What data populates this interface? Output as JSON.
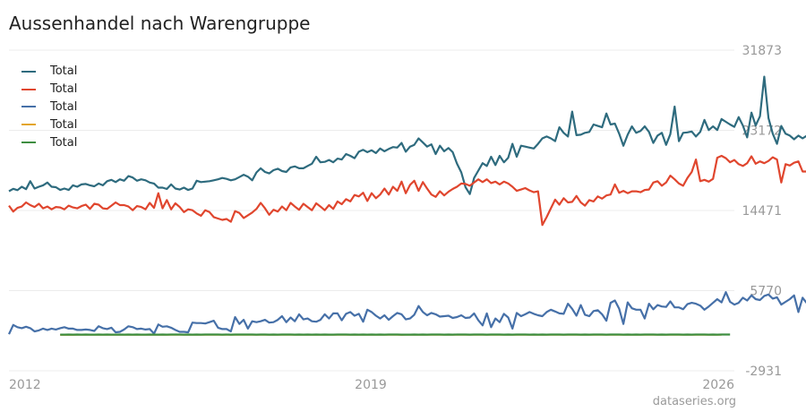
{
  "title": "Aussenhandel nach Warengruppe",
  "credit": "dataseries.org",
  "chart_data": {
    "type": "line",
    "title": "Aussenhandel nach Warengruppe",
    "x_ticks": [
      "2012",
      "2019",
      "2026"
    ],
    "x_range": [
      "2012-01",
      "2026-03"
    ],
    "y_ticks": [
      31873,
      23172,
      14471,
      5770,
      -2931
    ],
    "ylim": [
      -2931,
      31873
    ],
    "y_axis_side": "right",
    "grid": true,
    "legend_position": "top-left",
    "series": [
      {
        "name": "Total",
        "color": "#2e6b7e",
        "start": "2012-01",
        "frequency": "monthly",
        "values": [
          16560,
          16820,
          16680,
          17050,
          16780,
          17650,
          16850,
          17050,
          17200,
          17500,
          17050,
          17000,
          16700,
          16850,
          16700,
          17200,
          17050,
          17300,
          17350,
          17200,
          17100,
          17400,
          17200,
          17650,
          17800,
          17550,
          17850,
          17700,
          18200,
          18050,
          17700,
          17850,
          17750,
          17500,
          17400,
          16950,
          16950,
          16800,
          17300,
          16850,
          16750,
          16950,
          16700,
          16850,
          17700,
          17550,
          17600,
          17650,
          17750,
          17850,
          18000,
          17900,
          17750,
          17850,
          18100,
          18350,
          18150,
          17750,
          18600,
          19050,
          18650,
          18500,
          18850,
          19000,
          18750,
          18650,
          19150,
          19250,
          19050,
          19050,
          19300,
          19550,
          20300,
          19700,
          19750,
          19950,
          19700,
          20100,
          20000,
          20600,
          20400,
          20150,
          20850,
          21050,
          20800,
          21000,
          20700,
          21200,
          20900,
          21150,
          21350,
          21300,
          21800,
          20850,
          21400,
          21600,
          22300,
          21850,
          21400,
          21650,
          20600,
          21500,
          20900,
          21250,
          20800,
          19550,
          18600,
          17000,
          16250,
          18000,
          18800,
          19600,
          19300,
          20300,
          19400,
          20400,
          19700,
          20200,
          21700,
          20300,
          21500,
          21400,
          21300,
          21200,
          21700,
          22300,
          22500,
          22300,
          22000,
          23500,
          22900,
          22500,
          25200,
          22650,
          22700,
          22900,
          23000,
          23800,
          23650,
          23500,
          25000,
          23800,
          23900,
          22800,
          21500,
          22700,
          23600,
          22900,
          23100,
          23600,
          23000,
          21800,
          22600,
          22900,
          21600,
          22750,
          25750,
          22000,
          22900,
          22950,
          23050,
          22500,
          23000,
          24300,
          23200,
          23600,
          23200,
          24400,
          24100,
          23800,
          23550,
          24600,
          23700,
          22400,
          25100,
          23700,
          24700,
          29000,
          24500,
          22800,
          21700,
          23650,
          22800,
          22600,
          22200,
          22600,
          22300,
          22600,
          22700,
          22900,
          22200,
          22800,
          22700,
          22800,
          25300,
          24400
        ]
      },
      {
        "name": "Total",
        "color": "#e0462e",
        "start": "2012-01",
        "frequency": "monthly",
        "values": [
          15000,
          14350,
          14750,
          14900,
          15350,
          15050,
          14850,
          15200,
          14700,
          14900,
          14600,
          14850,
          14800,
          14600,
          15000,
          14800,
          14700,
          14950,
          15100,
          14650,
          15200,
          15100,
          14700,
          14650,
          15000,
          15350,
          15050,
          15050,
          14900,
          14500,
          14950,
          14850,
          14600,
          15300,
          14750,
          16350,
          14700,
          15600,
          14600,
          15250,
          14850,
          14300,
          14600,
          14500,
          14150,
          13900,
          14500,
          14300,
          13750,
          13600,
          13450,
          13550,
          13250,
          14400,
          14200,
          13650,
          13950,
          14250,
          14650,
          15300,
          14700,
          14000,
          14550,
          14350,
          14900,
          14500,
          15300,
          14900,
          14550,
          15200,
          14850,
          14500,
          15250,
          14900,
          14500,
          15050,
          14650,
          15450,
          15150,
          15700,
          15450,
          16150,
          16000,
          16400,
          15500,
          16350,
          15800,
          16200,
          16850,
          16200,
          17050,
          16600,
          17600,
          16350,
          17250,
          17700,
          16600,
          17550,
          16850,
          16200,
          15950,
          16550,
          16100,
          16500,
          16800,
          17050,
          17400,
          17350,
          17150,
          17500,
          17850,
          17550,
          17850,
          17450,
          17600,
          17300,
          17600,
          17400,
          17050,
          16600,
          16750,
          16900,
          16650,
          16450,
          16550,
          12900,
          13750,
          14700,
          15650,
          15100,
          15800,
          15350,
          15400,
          16050,
          15350,
          15000,
          15600,
          15450,
          16000,
          15750,
          16100,
          16200,
          17300,
          16400,
          16600,
          16350,
          16550,
          16550,
          16450,
          16700,
          16750,
          17500,
          17650,
          17150,
          17500,
          18250,
          17850,
          17400,
          17150,
          18000,
          18650,
          20000,
          17650,
          17800,
          17600,
          17900,
          20200,
          20400,
          20150,
          19700,
          19950,
          19500,
          19300,
          19600,
          20350,
          19550,
          19800,
          19600,
          19850,
          20250,
          20000,
          17500,
          19500,
          19350,
          19650,
          19800,
          18700,
          18700,
          19100,
          18750,
          18800,
          18350,
          19000,
          18300,
          18300,
          19650,
          19150,
          19700,
          19250,
          18750,
          19300,
          18600,
          19150,
          18700,
          18650,
          17950,
          18900,
          18850,
          18950,
          18250,
          18800,
          19550,
          18850,
          18650,
          18450,
          19100,
          18850,
          18350,
          19700,
          22400,
          18300,
          17350,
          19650,
          20050,
          19900,
          19650,
          19500,
          19600,
          17650,
          19650,
          19150,
          19450,
          19950,
          20450
        ]
      },
      {
        "name": "Total",
        "color": "#4670a8",
        "start": "2012-01",
        "frequency": "monthly",
        "values": [
          1050,
          2050,
          1800,
          1700,
          1850,
          1700,
          1350,
          1450,
          1650,
          1500,
          1650,
          1550,
          1700,
          1800,
          1650,
          1650,
          1500,
          1500,
          1550,
          1500,
          1400,
          1900,
          1700,
          1600,
          1750,
          1250,
          1300,
          1550,
          1900,
          1800,
          1600,
          1650,
          1550,
          1600,
          1100,
          2100,
          1850,
          1900,
          1750,
          1500,
          1300,
          1300,
          1250,
          2300,
          2250,
          2250,
          2200,
          2350,
          2500,
          1750,
          1600,
          1600,
          1350,
          2900,
          2150,
          2600,
          1650,
          2450,
          2350,
          2450,
          2600,
          2300,
          2350,
          2600,
          3000,
          2350,
          2850,
          2450,
          3200,
          2650,
          2750,
          2450,
          2400,
          2600,
          3200,
          2750,
          3300,
          3300,
          2550,
          3250,
          3450,
          3050,
          3250,
          2400,
          3700,
          3450,
          3050,
          2750,
          3100,
          2600,
          3000,
          3350,
          3200,
          2650,
          2750,
          3150,
          4100,
          3450,
          3100,
          3350,
          3200,
          2950,
          3000,
          3050,
          2800,
          2900,
          3100,
          2800,
          2850,
          3300,
          2550,
          2000,
          3300,
          1800,
          2750,
          2350,
          3250,
          2850,
          1650,
          3350,
          3000,
          3200,
          3450,
          3250,
          3100,
          3000,
          3450,
          3700,
          3500,
          3300,
          3250,
          4350,
          3800,
          3050,
          4200,
          3150,
          3000,
          3550,
          3650,
          3200,
          2500,
          4450,
          4700,
          3800,
          2150,
          4500,
          3850,
          3700,
          3700,
          2750,
          4350,
          3750,
          4200,
          4050,
          4000,
          4600,
          3950,
          3950,
          3750,
          4300,
          4450,
          4350,
          4150,
          3700,
          4050,
          4450,
          4850,
          4500,
          5600,
          4550,
          4250,
          4450,
          5000,
          4700,
          5250,
          4850,
          4750,
          5200,
          5350,
          4900,
          5050,
          4250,
          4550,
          4850,
          5250,
          3450,
          5000,
          4400,
          4350,
          3850,
          3950,
          4750,
          4300,
          4900,
          4000,
          3150,
          3900,
          5900,
          3300,
          4200,
          3700,
          2500,
          4200,
          5600,
          4950,
          4650,
          4550,
          3450,
          3800,
          3800,
          4000,
          4100,
          3750,
          3950,
          4000,
          3650,
          4000,
          4200,
          4950,
          4000,
          4500,
          3650,
          3400,
          4050,
          4150,
          3750,
          4350,
          4800,
          4050,
          4300,
          4450,
          4500,
          4600,
          4100,
          4650,
          4300,
          4550,
          4900,
          4650,
          4250,
          4500,
          5050,
          4950,
          4950,
          4600,
          5050,
          5500,
          5200,
          5400,
          5000,
          5800,
          5450,
          5500,
          4900,
          5050,
          5500,
          5250,
          4950,
          5250,
          4900,
          5350,
          4400,
          2800,
          4600,
          4850,
          5200,
          5050,
          4450,
          4800,
          4150,
          3900,
          4200,
          3850,
          4250,
          3600,
          4400,
          4200,
          5300,
          4650,
          4800,
          4900,
          4700,
          4800,
          4650,
          4350,
          4550,
          4700,
          4650,
          4200,
          3700,
          4800,
          3550,
          4000,
          5300,
          4150,
          3700,
          4000,
          3950,
          4300,
          4050,
          4250,
          3900,
          3800,
          4150,
          4050,
          3500,
          4000,
          4200,
          4100,
          3950,
          3750,
          5400,
          4550,
          4950,
          4150,
          3350,
          5200,
          5700,
          4800,
          5200,
          4600,
          3400,
          4800,
          4400,
          4450,
          4550,
          3550,
          4200,
          5700,
          4100,
          4850,
          5450,
          5800
        ]
      },
      {
        "name": "Total",
        "color": "#e3a52b",
        "start": "2013-01",
        "frequency": "monthly",
        "values": [
          980,
          980,
          985,
          980,
          985,
          985,
          990,
          985,
          990,
          985,
          990,
          990,
          985,
          990,
          990,
          985,
          990,
          990,
          985,
          990,
          985,
          990,
          990,
          985,
          990,
          995,
          990,
          990,
          985,
          990,
          990,
          995,
          990,
          985,
          990,
          990,
          995,
          990,
          990,
          985,
          990,
          995,
          990,
          985,
          995,
          990,
          990,
          985,
          990,
          985,
          990,
          990,
          985,
          990,
          985,
          990,
          995,
          985,
          990,
          990,
          985,
          990,
          985,
          990,
          985,
          990,
          990,
          985,
          990,
          985,
          990,
          985,
          990,
          985,
          990,
          985,
          990,
          995,
          990,
          985,
          980,
          985,
          990,
          985,
          990,
          985,
          990,
          985,
          990,
          995,
          990,
          985,
          990,
          990,
          985,
          990,
          995,
          990,
          990,
          985,
          990,
          985,
          990,
          985,
          990,
          995,
          990,
          985,
          990,
          985,
          990,
          985,
          990,
          985,
          990,
          985,
          990,
          985,
          990,
          985,
          990,
          985,
          990,
          985,
          990,
          990,
          985,
          990,
          995,
          990,
          990,
          985,
          990,
          985,
          990,
          985,
          990,
          990,
          985,
          990,
          985,
          990,
          985,
          990,
          985,
          990,
          985,
          990,
          985,
          990,
          985,
          990,
          985,
          990,
          985,
          990
        ]
      },
      {
        "name": "Total",
        "color": "#3e8e41",
        "start": "2013-01",
        "frequency": "monthly",
        "values": [
          1000,
          1000,
          1005,
          1000,
          1005,
          1000,
          1005,
          1000,
          1000,
          1005,
          1000,
          1005,
          1000,
          1000,
          1005,
          1000,
          1005,
          1000,
          1005,
          1000,
          1000,
          1005,
          1000,
          1000,
          1005,
          1000,
          1005,
          1010,
          1005,
          1000,
          1005,
          1000,
          1005,
          1000,
          1005,
          1005,
          1010,
          1005,
          1000,
          1005,
          1000,
          1005,
          1010,
          1005,
          1010,
          1005,
          1000,
          1005,
          1005,
          1000,
          1005,
          1000,
          1005,
          1005,
          1010,
          1000,
          1005,
          1000,
          1005,
          1000,
          1005,
          1000,
          1005,
          1000,
          1000,
          1005,
          1010,
          1005,
          1000,
          1005,
          1000,
          1005,
          1000,
          1005,
          1000,
          1005,
          1000,
          1005,
          1010,
          1005,
          1000,
          995,
          1000,
          1005,
          1000,
          1005,
          1000,
          1005,
          1010,
          1005,
          1000,
          1005,
          1000,
          1005,
          1010,
          1005,
          1000,
          1005,
          1010,
          1005,
          1000,
          1005,
          1010,
          1005,
          1000,
          1005,
          1000,
          1005,
          1010,
          1005,
          1000,
          1005,
          1000,
          1005,
          1000,
          1005,
          1010,
          1005,
          1000,
          1005,
          1010,
          1005,
          1000,
          1005,
          1000,
          1005,
          1010,
          1005,
          1000,
          1005,
          1010,
          1005,
          1000,
          1005,
          1000,
          1005,
          1000,
          1005,
          1010,
          1005,
          1000,
          1005,
          1000,
          1005,
          1010,
          1005,
          1000,
          1005,
          1000,
          1005,
          1010,
          1005,
          1000,
          1005,
          1000,
          1005,
          1010,
          1005
        ]
      }
    ]
  }
}
